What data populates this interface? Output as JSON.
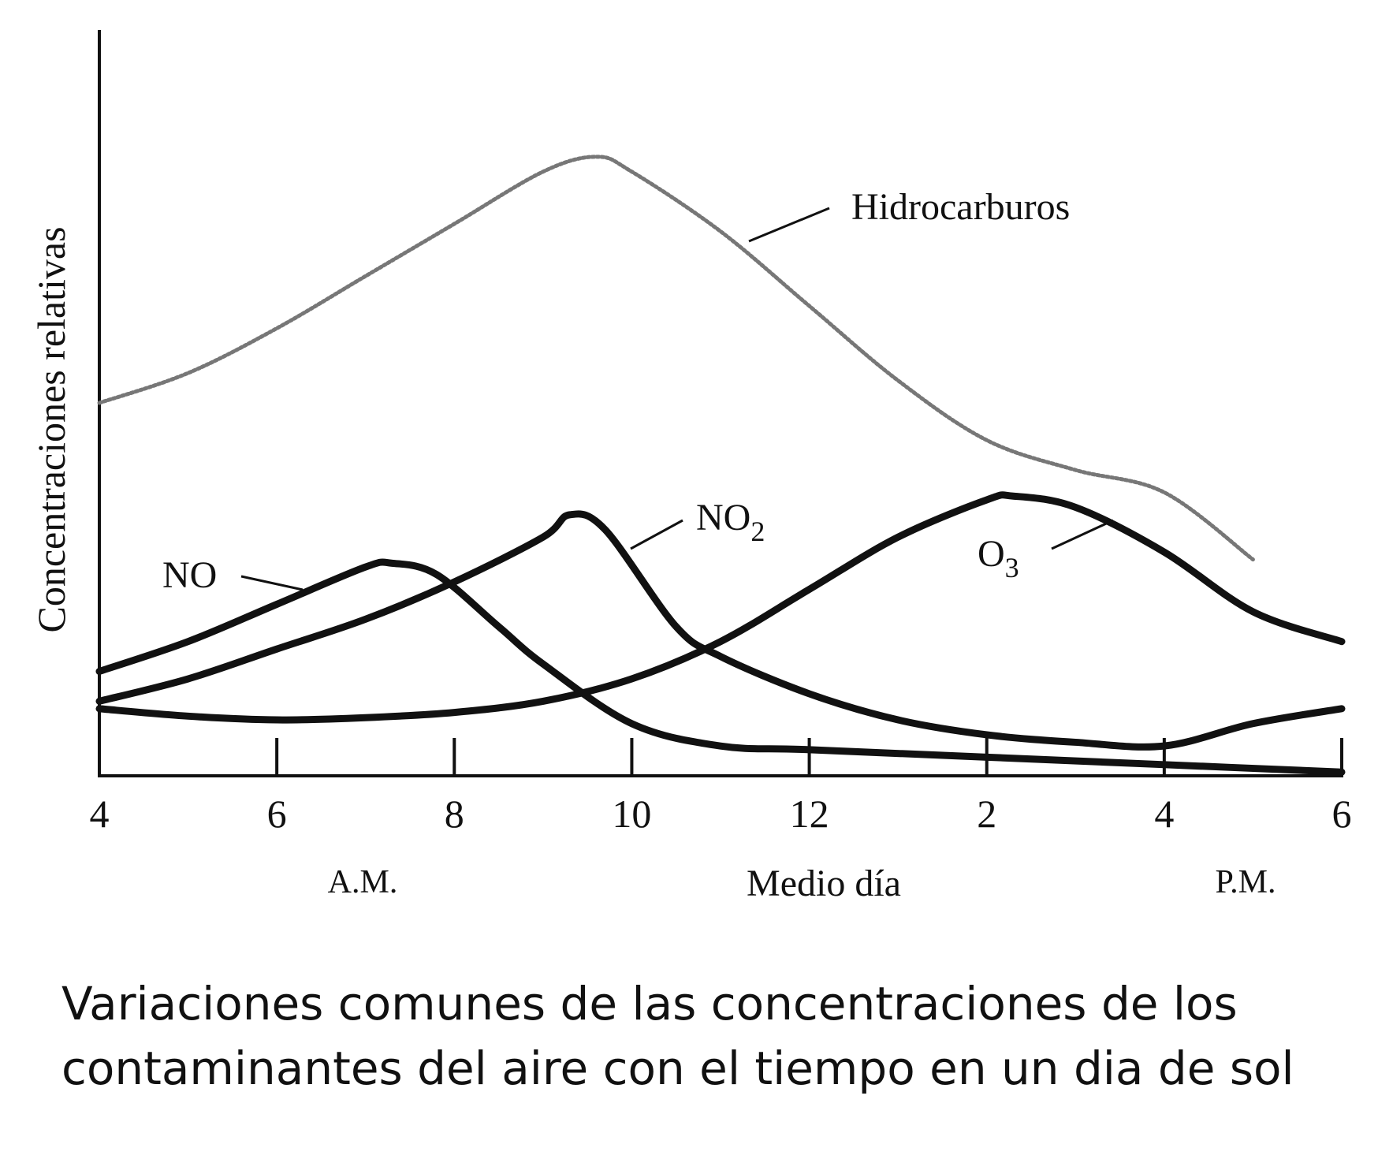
{
  "chart_data": {
    "type": "line",
    "title": "",
    "ylabel": "Concentraciones relativas",
    "xlabel": "Medio día",
    "period_labels": {
      "am": "A.M.",
      "pm": "P.M."
    },
    "x_tick_labels": [
      "4",
      "6",
      "8",
      "10",
      "12",
      "2",
      "4",
      "6"
    ],
    "xlim": [
      4,
      18
    ],
    "ylim": [
      0,
      1
    ],
    "grid": false,
    "legend": "none",
    "series": [
      {
        "name": "Hidrocarburos",
        "style": "dotted",
        "x": [
          4,
          5,
          6,
          7,
          8,
          9,
          9.6,
          10,
          11,
          12,
          13,
          14,
          15,
          16,
          17
        ],
        "y": [
          0.5,
          0.54,
          0.6,
          0.67,
          0.74,
          0.81,
          0.83,
          0.81,
          0.73,
          0.63,
          0.53,
          0.45,
          0.41,
          0.38,
          0.29
        ]
      },
      {
        "name": "NO",
        "label_text": "NO",
        "style": "solid",
        "x": [
          4,
          5,
          6,
          7,
          7.3,
          7.8,
          8.5,
          9,
          10,
          11,
          12,
          14,
          16,
          18
        ],
        "y": [
          0.14,
          0.18,
          0.23,
          0.28,
          0.285,
          0.27,
          0.2,
          0.15,
          0.07,
          0.04,
          0.035,
          0.025,
          0.015,
          0.005
        ]
      },
      {
        "name": "NO2",
        "label_text": "NO",
        "label_sub": "2",
        "style": "solid",
        "x": [
          4,
          5,
          6,
          7,
          8,
          9,
          9.3,
          9.7,
          10.5,
          11,
          12,
          13,
          14,
          15,
          16,
          17,
          18
        ],
        "y": [
          0.1,
          0.13,
          0.17,
          0.21,
          0.26,
          0.32,
          0.35,
          0.33,
          0.2,
          0.16,
          0.11,
          0.075,
          0.055,
          0.045,
          0.04,
          0.07,
          0.09
        ]
      },
      {
        "name": "O3",
        "label_text": "O",
        "label_sub": "3",
        "style": "solid",
        "x": [
          4,
          5,
          6,
          7,
          8,
          9,
          10,
          11,
          12,
          13,
          14,
          14.3,
          15,
          16,
          17,
          18
        ],
        "y": [
          0.09,
          0.08,
          0.075,
          0.078,
          0.085,
          0.1,
          0.13,
          0.18,
          0.25,
          0.32,
          0.37,
          0.375,
          0.36,
          0.3,
          0.22,
          0.18
        ]
      }
    ]
  },
  "caption": [
    "Variaciones comunes de las concentraciones de los",
    "contaminantes del aire con el tiempo en un dia de sol"
  ]
}
